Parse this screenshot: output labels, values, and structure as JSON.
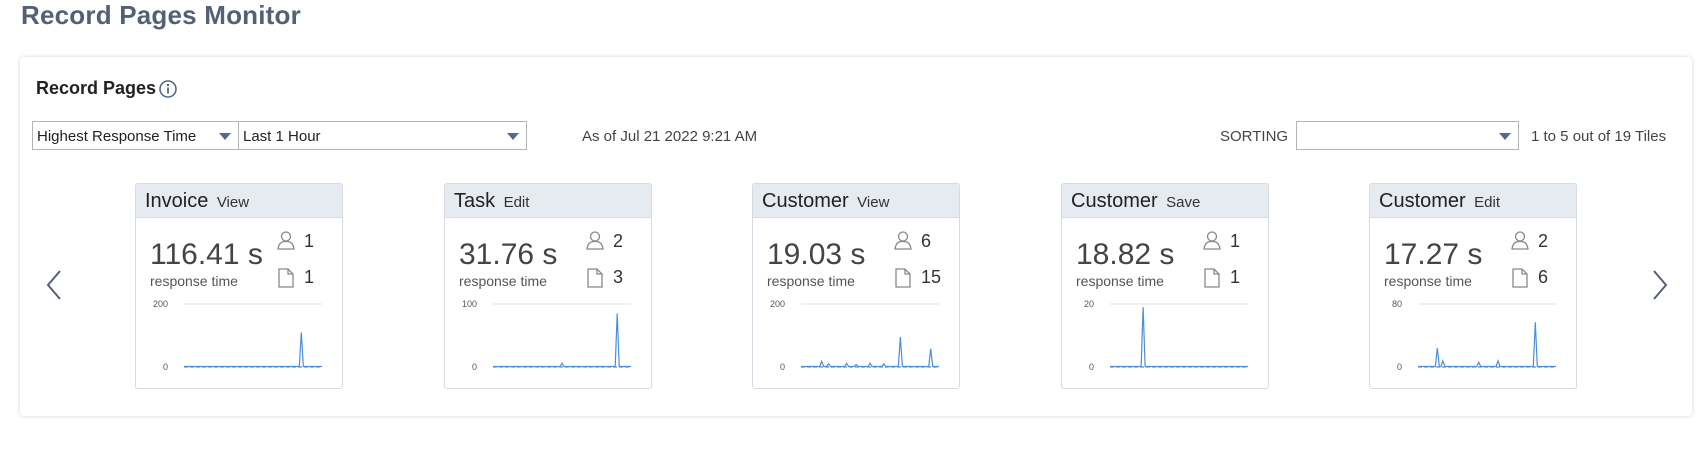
{
  "page": {
    "title": "Record Pages Monitor"
  },
  "panel": {
    "title": "Record Pages",
    "info_icon": "info-icon",
    "metric_select": {
      "value": "Highest Response Time"
    },
    "range_select": {
      "value": "Last 1 Hour"
    },
    "as_of": "As of Jul 21 2022 9:21 AM",
    "sorting_label": "SORTING",
    "sorting_select": {
      "value": ""
    },
    "tile_count": "1 to 5 out of 19 Tiles",
    "prev_icon": "chevron-left-icon",
    "next_icon": "chevron-right-icon"
  },
  "tiles": [
    {
      "name": "Invoice",
      "action": "View",
      "response_time": "116.41 s",
      "response_label": "response time",
      "users": "1",
      "pages": "1",
      "chart": {
        "ymax": 200,
        "ymax_label": "200",
        "ymin_label": "0",
        "spikes": [
          {
            "x": 0.85,
            "v": 110
          }
        ]
      }
    },
    {
      "name": "Task",
      "action": "Edit",
      "response_time": "31.76 s",
      "response_label": "response time",
      "users": "2",
      "pages": "3",
      "chart": {
        "ymax": 100,
        "ymax_label": "100",
        "ymin_label": "0",
        "spikes": [
          {
            "x": 0.5,
            "v": 6
          },
          {
            "x": 0.9,
            "v": 85
          }
        ]
      }
    },
    {
      "name": "Customer",
      "action": "View",
      "response_time": "19.03 s",
      "response_label": "response time",
      "users": "6",
      "pages": "15",
      "chart": {
        "ymax": 200,
        "ymax_label": "200",
        "ymin_label": "0",
        "spikes": [
          {
            "x": 0.15,
            "v": 18
          },
          {
            "x": 0.2,
            "v": 10
          },
          {
            "x": 0.33,
            "v": 12
          },
          {
            "x": 0.4,
            "v": 8
          },
          {
            "x": 0.5,
            "v": 12
          },
          {
            "x": 0.6,
            "v": 10
          },
          {
            "x": 0.72,
            "v": 95
          },
          {
            "x": 0.94,
            "v": 58
          }
        ]
      }
    },
    {
      "name": "Customer",
      "action": "Save",
      "response_time": "18.82 s",
      "response_label": "response time",
      "users": "1",
      "pages": "1",
      "chart": {
        "ymax": 20,
        "ymax_label": "20",
        "ymin_label": "0",
        "spikes": [
          {
            "x": 0.24,
            "v": 19
          }
        ]
      }
    },
    {
      "name": "Customer",
      "action": "Edit",
      "response_time": "17.27 s",
      "response_label": "response time",
      "users": "2",
      "pages": "6",
      "chart": {
        "ymax": 80,
        "ymax_label": "80",
        "ymin_label": "0",
        "spikes": [
          {
            "x": 0.14,
            "v": 24
          },
          {
            "x": 0.18,
            "v": 8
          },
          {
            "x": 0.44,
            "v": 6
          },
          {
            "x": 0.58,
            "v": 8
          },
          {
            "x": 0.85,
            "v": 57
          }
        ]
      }
    }
  ]
}
